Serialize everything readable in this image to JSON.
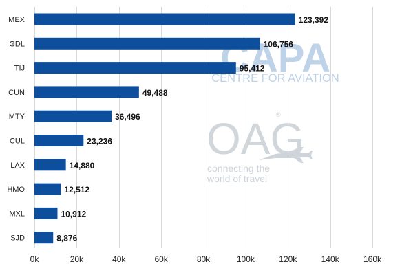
{
  "watermarks": {
    "capa_logo": "CAPA",
    "capa_sub": "CENTRE FOR AVIATION",
    "oag_logo": "OAG",
    "oag_registered": "®",
    "oag_tagline_1": "connecting the",
    "oag_tagline_2": "world of travel",
    "capa_color": "#b9cfe6",
    "oag_color": "#cfd4da"
  },
  "chart_data": {
    "type": "bar",
    "orientation": "horizontal",
    "categories": [
      "MEX",
      "GDL",
      "TIJ",
      "CUN",
      "MTY",
      "CUL",
      "LAX",
      "HMO",
      "MXL",
      "SJD"
    ],
    "values": [
      123392,
      106756,
      95412,
      49488,
      36496,
      23236,
      14880,
      12512,
      10912,
      8876
    ],
    "value_labels": [
      "123,392",
      "106,756",
      "95,412",
      "49,488",
      "36,496",
      "23,236",
      "14,880",
      "12,512",
      "10,912",
      "8,876"
    ],
    "xlim": [
      0,
      160000
    ],
    "x_ticks": [
      0,
      20000,
      40000,
      60000,
      80000,
      100000,
      120000,
      140000,
      160000
    ],
    "x_tick_labels": [
      "0k",
      "20k",
      "40k",
      "60k",
      "80k",
      "100k",
      "120k",
      "140k",
      "160k"
    ],
    "grid": "vertical",
    "bar_color": "#0d4f9c",
    "title": "",
    "xlabel": "",
    "ylabel": ""
  }
}
